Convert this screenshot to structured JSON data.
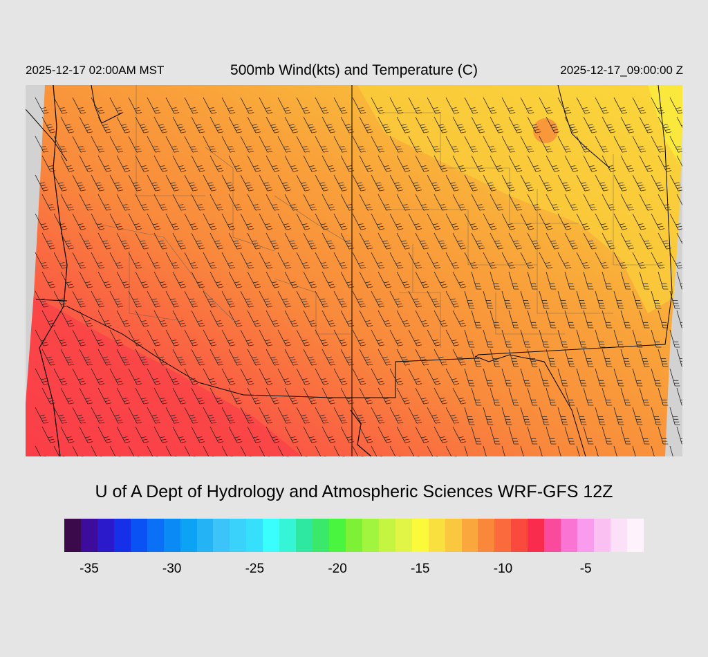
{
  "header": {
    "valid_local": "2025-12-17 02:00AM MST",
    "title": "500mb Wind(kts) and Temperature (C)",
    "valid_utc": "2025-12-17_09:00:00 Z"
  },
  "footer": {
    "credit": "U of A Dept of Hydrology and Atmospheric Sciences WRF-GFS 12Z"
  },
  "colorbar": {
    "colors": [
      "#3a0a4a",
      "#3d0c9c",
      "#2a1acc",
      "#1530e8",
      "#0b52f5",
      "#0a70f5",
      "#0a8af5",
      "#0ca3f5",
      "#24b3f5",
      "#3cc4fa",
      "#3ad2fb",
      "#36e0fd",
      "#3afdfd",
      "#36f5d6",
      "#2ee8a2",
      "#3ae86a",
      "#4af540",
      "#7ef036",
      "#a2f53e",
      "#c4f540",
      "#e0f545",
      "#fafa3a",
      "#fae03e",
      "#fac83e",
      "#faa83e",
      "#fa883a",
      "#fa6a3c",
      "#fa4a3e",
      "#fa2c4e",
      "#fa4a9e",
      "#fa74d4",
      "#fa9cee",
      "#fac0f2",
      "#fce0f8",
      "#fef2fc"
    ],
    "ticks": [
      "-35",
      "-30",
      "-25",
      "-20",
      "-15",
      "-10",
      "-5"
    ],
    "tick_values": [
      -35,
      -30,
      -25,
      -20,
      -15,
      -10,
      -5
    ],
    "range": [
      -36.5,
      -1.5
    ]
  }
}
